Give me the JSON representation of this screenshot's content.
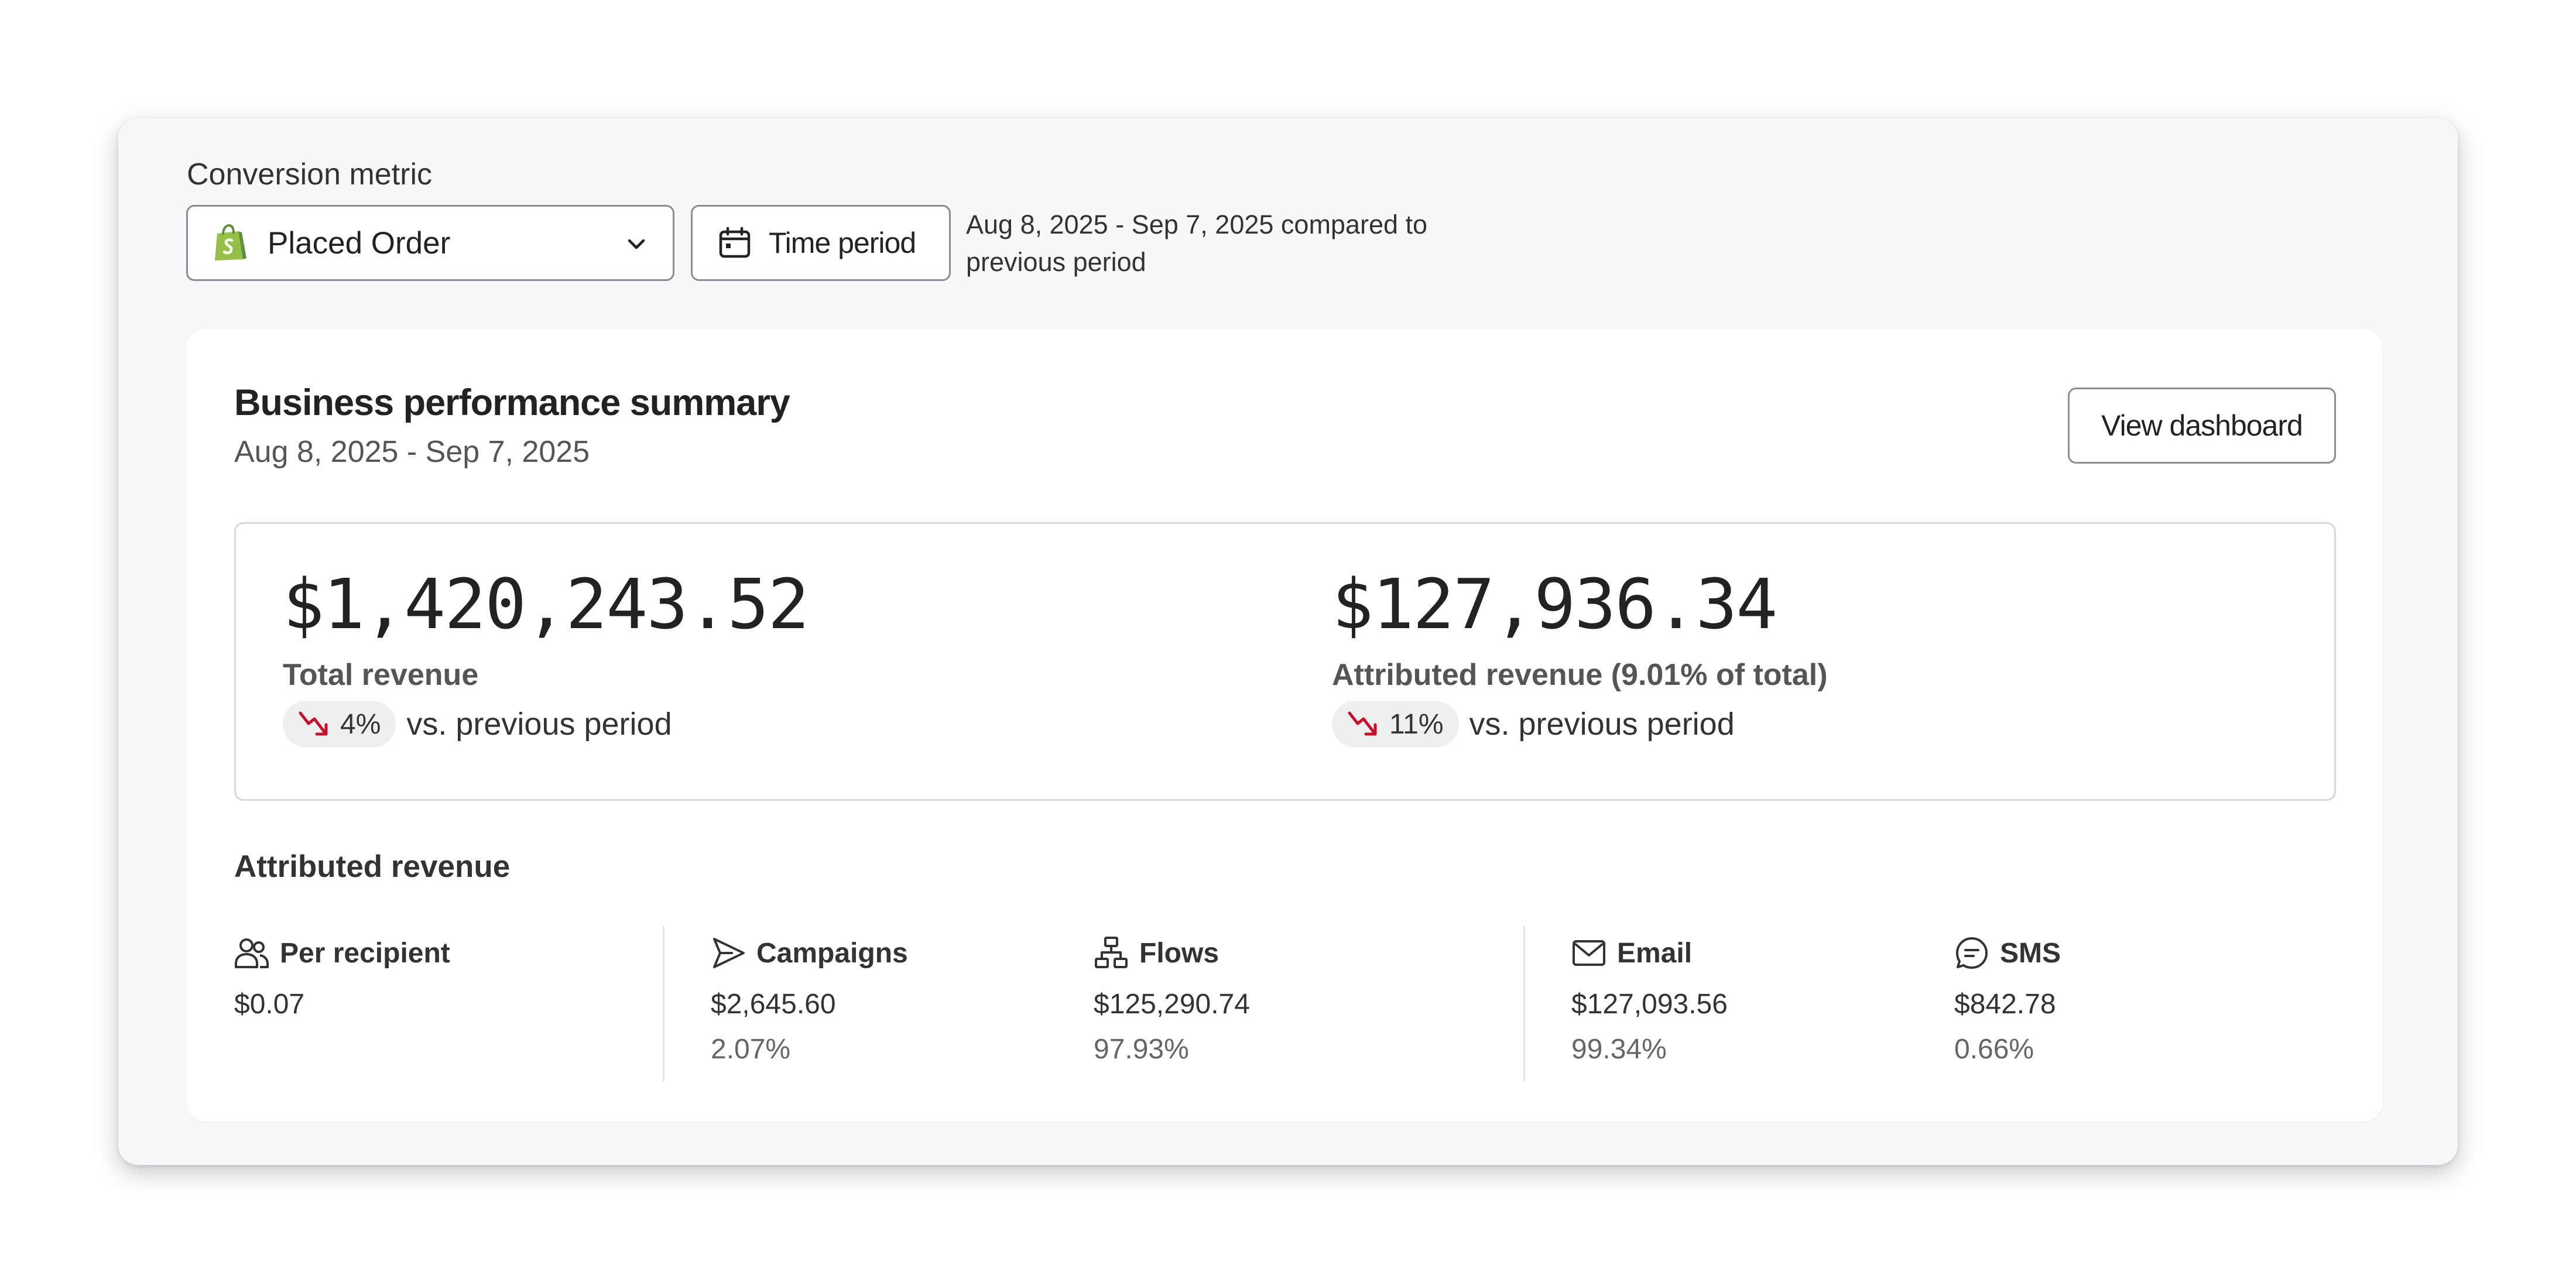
{
  "conversion_metric": {
    "label": "Conversion metric",
    "selected": "Placed Order",
    "selected_icon": "shopify-bag-icon"
  },
  "time_period": {
    "button_label": "Time period",
    "description": "Aug 8, 2025 - Sep 7, 2025 compared to previous period"
  },
  "summary": {
    "title": "Business performance summary",
    "date_range": "Aug 8, 2025 - Sep 7, 2025",
    "view_button": "View dashboard",
    "total": {
      "amount": "$1,420,243.52",
      "label": "Total revenue",
      "change": "4%",
      "change_direction": "down",
      "comparison": "vs. previous period"
    },
    "attributed": {
      "amount": "$127,936.34",
      "label": "Attributed revenue (9.01% of total)",
      "change": "11%",
      "change_direction": "down",
      "comparison": "vs. previous period"
    }
  },
  "attributed_revenue": {
    "title": "Attributed revenue",
    "stats": [
      {
        "name": "Per recipient",
        "icon": "people-icon",
        "value": "$0.07",
        "percent": ""
      },
      {
        "name": "Campaigns",
        "icon": "send-icon",
        "value": "$2,645.60",
        "percent": "2.07%"
      },
      {
        "name": "Flows",
        "icon": "flow-icon",
        "value": "$125,290.74",
        "percent": "97.93%"
      },
      {
        "name": "Email",
        "icon": "envelope-icon",
        "value": "$127,093.56",
        "percent": "99.34%"
      },
      {
        "name": "SMS",
        "icon": "chat-icon",
        "value": "$842.78",
        "percent": "0.66%"
      }
    ]
  },
  "colors": {
    "trend_down": "#c8102e",
    "pill_bg": "#efefef",
    "shopify_green": "#95bf47"
  }
}
